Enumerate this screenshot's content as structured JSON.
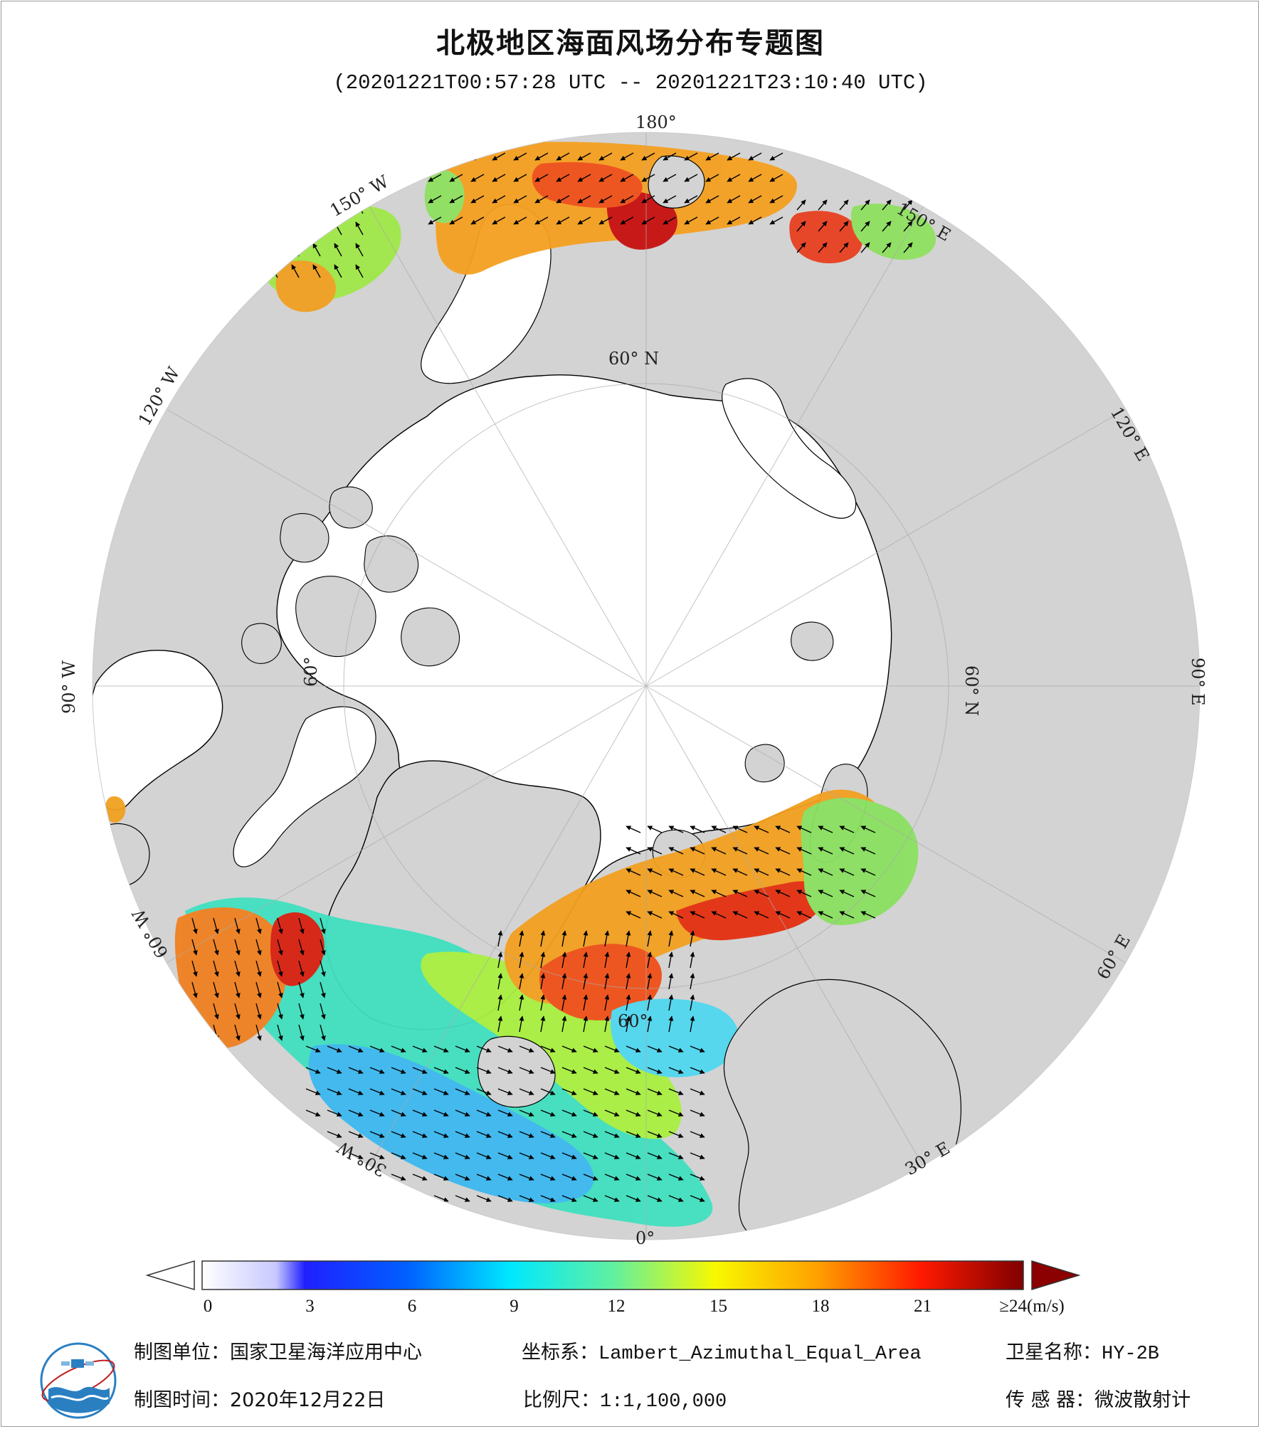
{
  "title": "北极地区海面风场分布专题图",
  "subtitle": "(20201221T00:57:28 UTC -- 20201221T23:10:40 UTC)",
  "map": {
    "projection_graticule_labels": {
      "lon_180": "180°",
      "lon_150E": "150° E",
      "lon_120E": "120° E",
      "lon_90E": "90° E",
      "lon_60E": "60° E",
      "lon_30E": "30° E",
      "lon_0": "0°",
      "lon_30W": "30° W",
      "lon_60W": "60° W",
      "lon_90W": "90° W",
      "lon_120W": "120° W",
      "lon_150W": "150° W",
      "lat_60N_top": "60° N",
      "lat_60N_right": "60° N",
      "lat_60_left": "60°",
      "lat_60_bottom": "60°"
    },
    "colors": {
      "land": "#d3d3d3",
      "sea_ice": "#ffffff",
      "coastline": "#000000",
      "wind_arrow": "#000000"
    }
  },
  "colorbar": {
    "unit": "(m/s)",
    "ticks": [
      "0",
      "3",
      "6",
      "9",
      "12",
      "15",
      "18",
      "21",
      "≥24(m/s)"
    ],
    "tick_values": [
      0,
      3,
      6,
      9,
      12,
      15,
      18,
      21,
      24
    ],
    "range": [
      0,
      24
    ],
    "stops": [
      "#ffffff",
      "#d6d6ff",
      "#0000ff",
      "#00e0ff",
      "#00ffc0",
      "#ffff00",
      "#ffa000",
      "#ff0000",
      "#800000"
    ]
  },
  "footer": {
    "unit_label": "制图单位：",
    "unit_value": "国家卫星海洋应用中心",
    "coord_label": "坐标系：",
    "coord_value": "Lambert_Azimuthal_Equal_Area",
    "sat_label": "卫星名称：",
    "sat_value": "HY-2B",
    "time_label": "制图时间：",
    "time_value": "2020年12月22日",
    "scale_label": "比例尺：",
    "scale_value": "1:1,100,000",
    "sensor_label": "传 感 器：",
    "sensor_value": "微波散射计"
  }
}
